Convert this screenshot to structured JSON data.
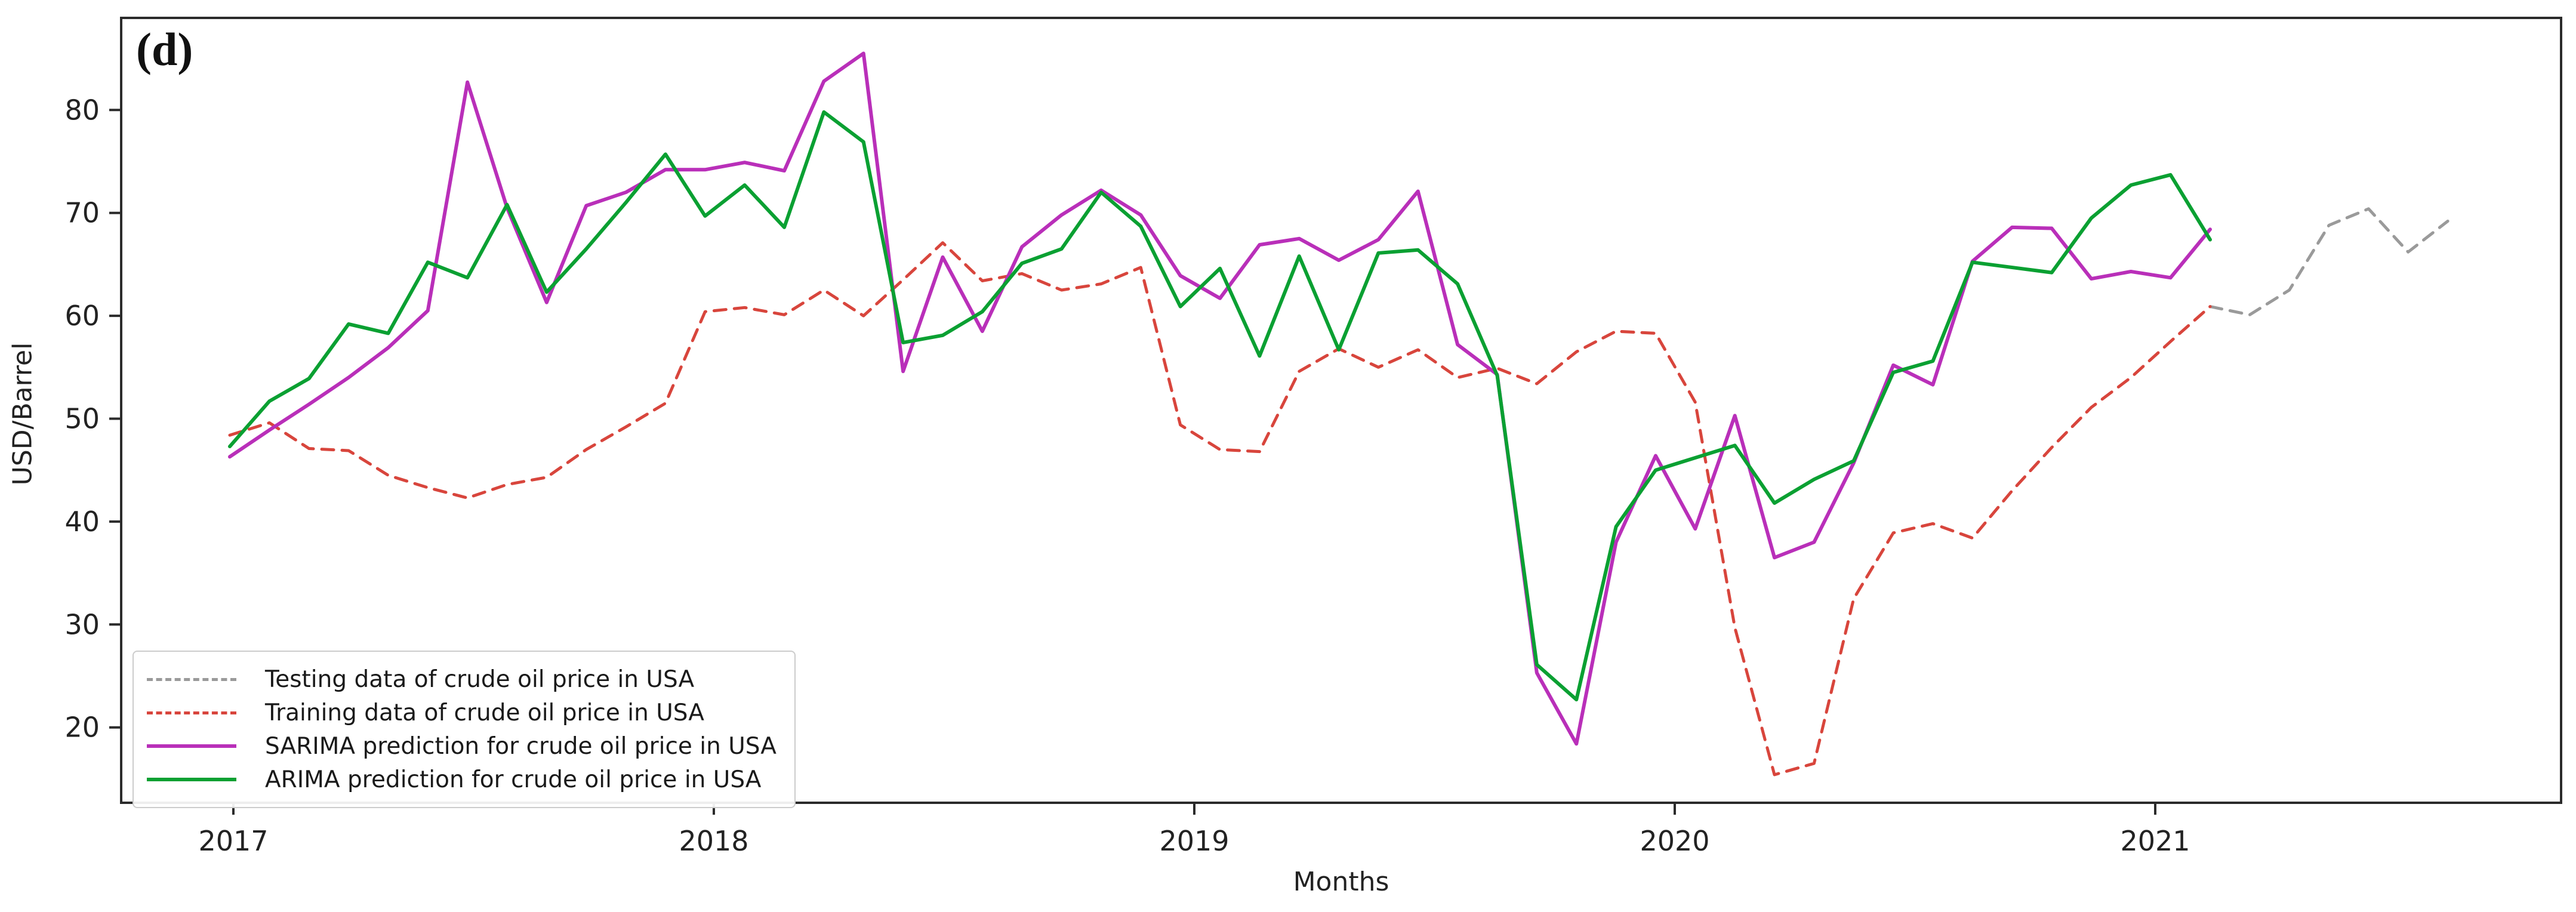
{
  "figure": {
    "panel_label": "(d)",
    "xlabel": "Months",
    "ylabel": "USD/Barrel"
  },
  "axes": {
    "y_ticks": [
      20,
      30,
      40,
      50,
      60,
      70,
      80
    ],
    "x_ticks": [
      "2017",
      "2018",
      "2019",
      "2020",
      "2021"
    ],
    "ylim": [
      12.7,
      88.9
    ],
    "grid": false
  },
  "legend": {
    "position": "lower-left",
    "items": [
      {
        "label": "Testing data of crude oil price in USA",
        "color": "#9a9a9a",
        "dash": true
      },
      {
        "label": "Training data of crude oil price in USA",
        "color": "#d8453c",
        "dash": true
      },
      {
        "label": "SARIMA prediction for crude oil price in USA",
        "color": "#b92fb9",
        "dash": false
      },
      {
        "label": "ARIMA prediction for crude oil price in USA",
        "color": "#0aa032",
        "dash": false
      }
    ]
  },
  "chart_data": {
    "type": "line",
    "title": "(d)",
    "xlabel": "Months",
    "ylabel": "USD/Barrel",
    "x_unit": "month",
    "x_months": [
      "2017-01",
      "2017-02",
      "2017-03",
      "2017-04",
      "2017-05",
      "2017-06",
      "2017-07",
      "2017-08",
      "2017-09",
      "2017-10",
      "2017-11",
      "2017-12",
      "2018-01",
      "2018-02",
      "2018-03",
      "2018-04",
      "2018-05",
      "2018-06",
      "2018-07",
      "2018-08",
      "2018-09",
      "2018-10",
      "2018-11",
      "2018-12",
      "2019-01",
      "2019-02",
      "2019-03",
      "2019-04",
      "2019-05",
      "2019-06",
      "2019-07",
      "2019-08",
      "2019-09",
      "2019-10",
      "2019-11",
      "2019-12",
      "2020-01",
      "2020-02",
      "2020-03",
      "2020-04",
      "2020-05",
      "2020-06",
      "2020-07",
      "2020-08",
      "2020-09",
      "2020-10",
      "2020-11",
      "2020-12",
      "2021-01",
      "2021-02",
      "2021-03"
    ],
    "test_months": [
      "2021-03",
      "2021-04",
      "2021-05",
      "2021-06",
      "2021-07",
      "2021-08",
      "2021-09"
    ],
    "series": [
      {
        "name": "Testing data of crude oil price in USA",
        "color": "#9a9a9a",
        "style": "dashed",
        "start_index": 50,
        "values": [
          60.9,
          60.1,
          62.5,
          68.8,
          70.4,
          66.2,
          69.2
        ]
      },
      {
        "name": "Training data of crude oil price in USA",
        "color": "#d8453c",
        "style": "dashed",
        "start_index": 0,
        "values": [
          48.4,
          49.6,
          47.1,
          46.9,
          44.5,
          43.3,
          42.3,
          43.6,
          44.3,
          47.0,
          49.2,
          51.5,
          60.4,
          60.8,
          60.1,
          62.5,
          60.0,
          63.5,
          67.1,
          63.4,
          64.1,
          62.5,
          63.1,
          64.7,
          49.4,
          47.0,
          46.8,
          54.6,
          56.8,
          55.0,
          56.7,
          54.0,
          54.9,
          53.4,
          56.5,
          58.5,
          58.3,
          51.6,
          29.7,
          15.4,
          16.5,
          32.5,
          38.9,
          39.8,
          38.4,
          43.0,
          47.2,
          51.1,
          54.0,
          57.5,
          60.9
        ]
      },
      {
        "name": "SARIMA prediction for crude oil price in USA",
        "color": "#b92fb9",
        "style": "solid",
        "start_index": 0,
        "values": [
          46.3,
          48.9,
          51.4,
          54.0,
          56.9,
          60.5,
          82.7,
          70.5,
          61.3,
          70.7,
          72.0,
          74.2,
          74.2,
          74.9,
          74.1,
          82.8,
          85.5,
          54.6,
          65.7,
          58.5,
          66.7,
          69.8,
          72.2,
          69.8,
          63.9,
          61.7,
          66.9,
          67.5,
          65.4,
          67.4,
          72.1,
          57.2,
          54.3,
          25.3,
          18.4,
          38.0,
          46.4,
          39.3,
          50.3,
          36.5,
          38.0,
          45.7,
          55.2,
          53.3,
          65.3,
          68.6,
          68.5,
          63.6,
          64.3,
          63.7,
          68.4
        ]
      },
      {
        "name": "ARIMA prediction for crude oil price in USA",
        "color": "#0aa032",
        "style": "solid",
        "start_index": 0,
        "values": [
          47.3,
          51.7,
          53.9,
          59.2,
          58.3,
          65.2,
          63.7,
          70.8,
          62.3,
          66.5,
          71.0,
          75.7,
          69.7,
          72.7,
          68.6,
          79.8,
          76.9,
          57.4,
          58.1,
          60.4,
          65.1,
          66.5,
          72.0,
          68.7,
          60.9,
          64.6,
          56.1,
          65.8,
          56.7,
          66.1,
          66.4,
          63.1,
          54.2,
          26.1,
          22.7,
          39.5,
          45.0,
          46.2,
          47.4,
          41.8,
          44.1,
          45.9,
          54.5,
          55.6,
          65.2,
          64.7,
          64.2,
          69.5,
          72.7,
          73.7,
          67.4
        ]
      }
    ]
  }
}
